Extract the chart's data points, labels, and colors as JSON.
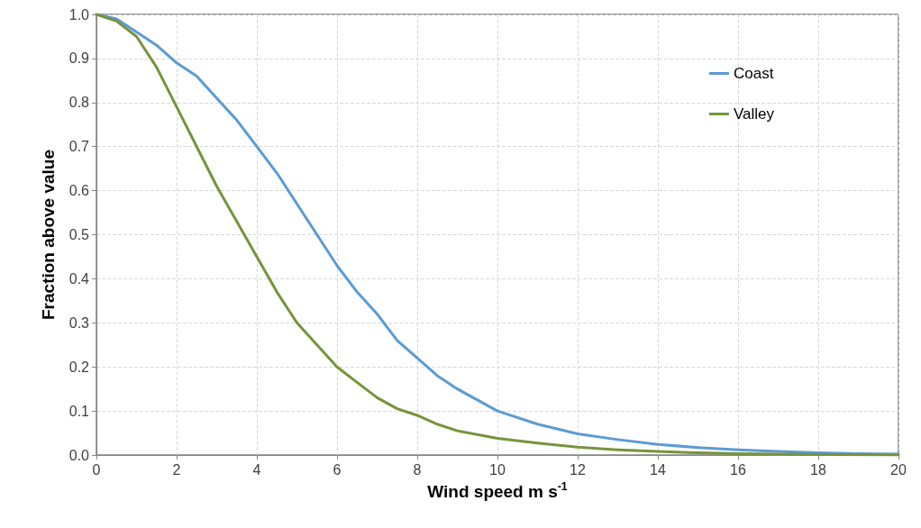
{
  "chart_data": {
    "type": "line",
    "xlabel": "Wind speed m s$^{-1}$",
    "ylabel": "Fraction above value",
    "xlim": [
      0,
      20
    ],
    "xticks": [
      0,
      2,
      4,
      6,
      8,
      10,
      12,
      14,
      16,
      18,
      20
    ],
    "ylim": [
      0,
      1
    ],
    "yticks": [
      {
        "value": 0,
        "label": "0.0"
      },
      {
        "value": 0.1,
        "label": "0.1"
      },
      {
        "value": 0.2,
        "label": "0.2"
      },
      {
        "value": 0.3,
        "label": "0.3"
      },
      {
        "value": 0.4,
        "label": "0.4"
      },
      {
        "value": 0.5,
        "label": "0.5"
      },
      {
        "value": 0.6,
        "label": "0.6"
      },
      {
        "value": 0.7,
        "label": "0.7"
      },
      {
        "value": 0.8,
        "label": "0.8"
      },
      {
        "value": 0.9,
        "label": "0.9"
      },
      {
        "value": 1,
        "label": "1.0"
      }
    ],
    "grid": true,
    "legend": "top right",
    "marker": "none",
    "line_style": "solid",
    "series": [
      {
        "name": "Coast",
        "color": "#5b9bd5",
        "x": [
          0,
          0.5,
          1,
          1.5,
          2,
          2.5,
          3,
          3.5,
          4,
          4.5,
          5,
          5.5,
          6,
          6.5,
          7,
          7.5,
          8,
          8.5,
          9,
          9.5,
          10,
          11,
          12,
          13,
          14,
          15,
          16,
          17,
          18,
          19,
          20
        ],
        "values": [
          1.0,
          0.99,
          0.96,
          0.93,
          0.89,
          0.86,
          0.81,
          0.76,
          0.7,
          0.64,
          0.57,
          0.5,
          0.43,
          0.37,
          0.32,
          0.26,
          0.22,
          0.18,
          0.15,
          0.125,
          0.1,
          0.07,
          0.048,
          0.035,
          0.024,
          0.017,
          0.012,
          0.008,
          0.005,
          0.003,
          0.002
        ]
      },
      {
        "name": "Valley",
        "color": "#77933c",
        "x": [
          0,
          0.5,
          1,
          1.5,
          2,
          2.5,
          3,
          3.5,
          4,
          4.5,
          5,
          5.5,
          6,
          6.5,
          7,
          7.5,
          8,
          8.5,
          9,
          10,
          11,
          12,
          13,
          14,
          15,
          16,
          18,
          20
        ],
        "values": [
          1.0,
          0.985,
          0.95,
          0.88,
          0.79,
          0.7,
          0.61,
          0.53,
          0.45,
          0.37,
          0.3,
          0.25,
          0.2,
          0.165,
          0.13,
          0.105,
          0.09,
          0.07,
          0.055,
          0.038,
          0.027,
          0.018,
          0.012,
          0.008,
          0.005,
          0.003,
          0.001,
          0.0
        ]
      }
    ]
  }
}
